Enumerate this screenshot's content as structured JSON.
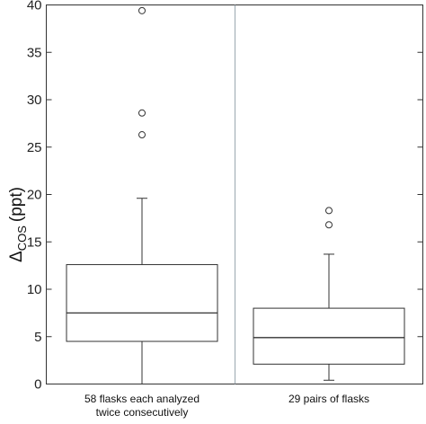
{
  "chart_data": {
    "type": "box",
    "ylabel_main": "Δ",
    "ylabel_sub": "COS",
    "ylabel_unit": "(ppt)",
    "ylim": [
      0,
      40
    ],
    "yticks": [
      0,
      5,
      10,
      15,
      20,
      25,
      30,
      35,
      40
    ],
    "categories": [
      [
        "58 flasks each analyzed",
        "twice consecutively"
      ],
      [
        "29 pairs of flasks"
      ]
    ],
    "boxes": [
      {
        "min": 0.0,
        "q1": 4.5,
        "median": 7.5,
        "q3": 12.6,
        "max": 19.6,
        "outliers": [
          26.3,
          28.6,
          39.4
        ]
      },
      {
        "min": 0.4,
        "q1": 2.1,
        "median": 4.9,
        "q3": 8.0,
        "max": 13.7,
        "outliers": [
          16.8,
          18.3
        ]
      }
    ],
    "divider": true,
    "grid": false
  }
}
